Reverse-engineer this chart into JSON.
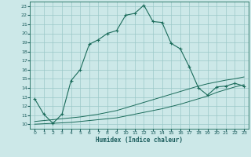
{
  "xlabel": "Humidex (Indice chaleur)",
  "x_ticks": [
    0,
    1,
    2,
    3,
    4,
    5,
    6,
    7,
    8,
    9,
    10,
    11,
    12,
    13,
    14,
    15,
    16,
    17,
    18,
    19,
    20,
    21,
    22,
    23
  ],
  "y_ticks": [
    10,
    11,
    12,
    13,
    14,
    15,
    16,
    17,
    18,
    19,
    20,
    21,
    22,
    23
  ],
  "xlim": [
    -0.5,
    23.5
  ],
  "ylim": [
    9.5,
    23.5
  ],
  "line1_x": [
    0,
    1,
    2,
    3,
    4,
    5,
    6,
    7,
    8,
    9,
    10,
    11,
    12,
    13,
    14,
    15,
    16,
    17,
    18,
    19,
    20,
    21,
    22,
    23
  ],
  "line1_y": [
    12.8,
    11.1,
    10.1,
    11.1,
    14.8,
    16.0,
    18.8,
    19.3,
    20.0,
    20.3,
    22.0,
    22.2,
    23.1,
    21.3,
    21.2,
    18.9,
    18.3,
    16.3,
    14.0,
    13.2,
    14.1,
    14.2,
    14.5,
    14.2
  ],
  "line2_x": [
    0,
    1,
    2,
    3,
    4,
    5,
    6,
    7,
    8,
    9,
    10,
    11,
    12,
    13,
    14,
    15,
    16,
    17,
    18,
    19,
    20,
    21,
    22,
    23
  ],
  "line2_y": [
    10.0,
    10.05,
    10.1,
    10.15,
    10.2,
    10.3,
    10.4,
    10.5,
    10.6,
    10.7,
    10.9,
    11.1,
    11.3,
    11.5,
    11.7,
    11.95,
    12.2,
    12.5,
    12.8,
    13.1,
    13.5,
    13.8,
    14.1,
    14.35
  ],
  "line3_x": [
    0,
    1,
    2,
    3,
    4,
    5,
    6,
    7,
    8,
    9,
    10,
    11,
    12,
    13,
    14,
    15,
    16,
    17,
    18,
    19,
    20,
    21,
    22,
    23
  ],
  "line3_y": [
    10.3,
    10.4,
    10.5,
    10.6,
    10.7,
    10.8,
    10.95,
    11.1,
    11.3,
    11.5,
    11.8,
    12.1,
    12.4,
    12.7,
    13.0,
    13.3,
    13.6,
    13.9,
    14.2,
    14.45,
    14.65,
    14.85,
    15.0,
    15.2
  ],
  "line_color": "#1a6b5a",
  "bg_color": "#cce8e8",
  "grid_color": "#9ac8c8",
  "text_color": "#1a5c5c"
}
